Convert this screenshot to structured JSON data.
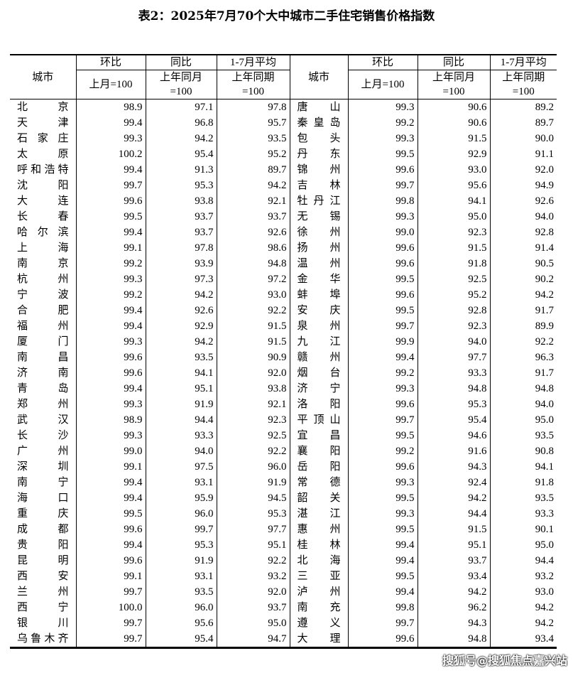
{
  "title": "表2：2025年7月70个大中城市二手住宅销售价格指数",
  "headers": {
    "city": "城市",
    "mom": "环比",
    "yoy": "同比",
    "avg": "1-7月平均",
    "mom_base": "上月=100",
    "yoy_base_1": "上年同月",
    "yoy_base_2": "=100",
    "avg_base_1": "上年同期",
    "avg_base_2": "=100"
  },
  "rows_left": [
    [
      "北京",
      "98.9",
      "97.1",
      "97.8"
    ],
    [
      "天津",
      "99.4",
      "96.8",
      "95.7"
    ],
    [
      "石家庄",
      "99.3",
      "94.2",
      "93.5"
    ],
    [
      "太原",
      "100.2",
      "95.4",
      "95.2"
    ],
    [
      "呼和浩特",
      "99.4",
      "91.3",
      "89.7"
    ],
    [
      "沈阳",
      "99.7",
      "95.3",
      "94.2"
    ],
    [
      "大连",
      "99.6",
      "93.8",
      "92.1"
    ],
    [
      "长春",
      "99.5",
      "93.7",
      "93.7"
    ],
    [
      "哈尔滨",
      "99.4",
      "93.7",
      "92.6"
    ],
    [
      "上海",
      "99.1",
      "97.8",
      "98.6"
    ],
    [
      "南京",
      "99.2",
      "93.9",
      "94.8"
    ],
    [
      "杭州",
      "99.3",
      "97.3",
      "97.2"
    ],
    [
      "宁波",
      "99.2",
      "94.2",
      "93.0"
    ],
    [
      "合肥",
      "99.4",
      "92.6",
      "92.2"
    ],
    [
      "福州",
      "99.4",
      "92.9",
      "91.5"
    ],
    [
      "厦门",
      "99.3",
      "94.2",
      "91.5"
    ],
    [
      "南昌",
      "99.6",
      "93.5",
      "90.9"
    ],
    [
      "济南",
      "99.6",
      "94.1",
      "92.0"
    ],
    [
      "青岛",
      "99.4",
      "95.1",
      "93.8"
    ],
    [
      "郑州",
      "99.3",
      "91.9",
      "92.1"
    ],
    [
      "武汉",
      "98.9",
      "94.4",
      "92.3"
    ],
    [
      "长沙",
      "99.3",
      "93.3",
      "92.5"
    ],
    [
      "广州",
      "99.0",
      "94.0",
      "92.2"
    ],
    [
      "深圳",
      "99.1",
      "97.5",
      "96.0"
    ],
    [
      "南宁",
      "99.4",
      "93.1",
      "91.9"
    ],
    [
      "海口",
      "99.4",
      "95.9",
      "94.5"
    ],
    [
      "重庆",
      "99.5",
      "96.0",
      "95.3"
    ],
    [
      "成都",
      "99.6",
      "99.7",
      "97.7"
    ],
    [
      "贵阳",
      "99.4",
      "95.3",
      "95.1"
    ],
    [
      "昆明",
      "99.6",
      "91.9",
      "92.2"
    ],
    [
      "西安",
      "99.1",
      "93.1",
      "93.2"
    ],
    [
      "兰州",
      "99.7",
      "93.5",
      "92.0"
    ],
    [
      "西宁",
      "100.0",
      "96.0",
      "93.7"
    ],
    [
      "银川",
      "99.7",
      "95.6",
      "95.0"
    ],
    [
      "乌鲁木齐",
      "99.7",
      "95.4",
      "94.7"
    ]
  ],
  "rows_right": [
    [
      "唐山",
      "99.3",
      "90.6",
      "89.2"
    ],
    [
      "秦皇岛",
      "99.2",
      "90.6",
      "89.7"
    ],
    [
      "包头",
      "99.3",
      "91.5",
      "90.0"
    ],
    [
      "丹东",
      "99.5",
      "92.9",
      "91.1"
    ],
    [
      "锦州",
      "99.6",
      "93.0",
      "92.0"
    ],
    [
      "吉林",
      "99.7",
      "95.6",
      "94.9"
    ],
    [
      "牡丹江",
      "99.8",
      "94.1",
      "92.6"
    ],
    [
      "无锡",
      "99.3",
      "95.0",
      "94.0"
    ],
    [
      "徐州",
      "99.0",
      "92.3",
      "92.8"
    ],
    [
      "扬州",
      "99.6",
      "91.5",
      "91.4"
    ],
    [
      "温州",
      "99.6",
      "91.8",
      "90.5"
    ],
    [
      "金华",
      "99.5",
      "92.5",
      "90.2"
    ],
    [
      "蚌埠",
      "99.6",
      "95.2",
      "94.2"
    ],
    [
      "安庆",
      "99.5",
      "92.8",
      "91.7"
    ],
    [
      "泉州",
      "99.7",
      "92.3",
      "89.9"
    ],
    [
      "九江",
      "99.9",
      "94.0",
      "92.2"
    ],
    [
      "赣州",
      "99.4",
      "97.7",
      "96.3"
    ],
    [
      "烟台",
      "99.2",
      "93.3",
      "91.7"
    ],
    [
      "济宁",
      "99.3",
      "94.8",
      "94.8"
    ],
    [
      "洛阳",
      "99.6",
      "95.3",
      "94.0"
    ],
    [
      "平顶山",
      "99.7",
      "95.4",
      "95.0"
    ],
    [
      "宜昌",
      "99.5",
      "94.6",
      "93.5"
    ],
    [
      "襄阳",
      "99.2",
      "91.6",
      "90.8"
    ],
    [
      "岳阳",
      "99.6",
      "94.3",
      "94.1"
    ],
    [
      "常德",
      "99.3",
      "92.4",
      "91.8"
    ],
    [
      "韶关",
      "99.5",
      "94.2",
      "93.5"
    ],
    [
      "湛江",
      "99.3",
      "94.4",
      "93.3"
    ],
    [
      "惠州",
      "99.5",
      "91.5",
      "90.1"
    ],
    [
      "桂林",
      "99.4",
      "95.1",
      "95.0"
    ],
    [
      "北海",
      "99.4",
      "93.7",
      "94.4"
    ],
    [
      "三亚",
      "99.5",
      "93.4",
      "93.2"
    ],
    [
      "泸州",
      "99.4",
      "94.2",
      "93.0"
    ],
    [
      "南充",
      "99.8",
      "96.2",
      "94.2"
    ],
    [
      "遵义",
      "99.7",
      "94.3",
      "94.2"
    ],
    [
      "大理",
      "99.6",
      "94.8",
      "93.4"
    ]
  ],
  "watermark": "搜狐号@搜狐焦点嘉兴站"
}
